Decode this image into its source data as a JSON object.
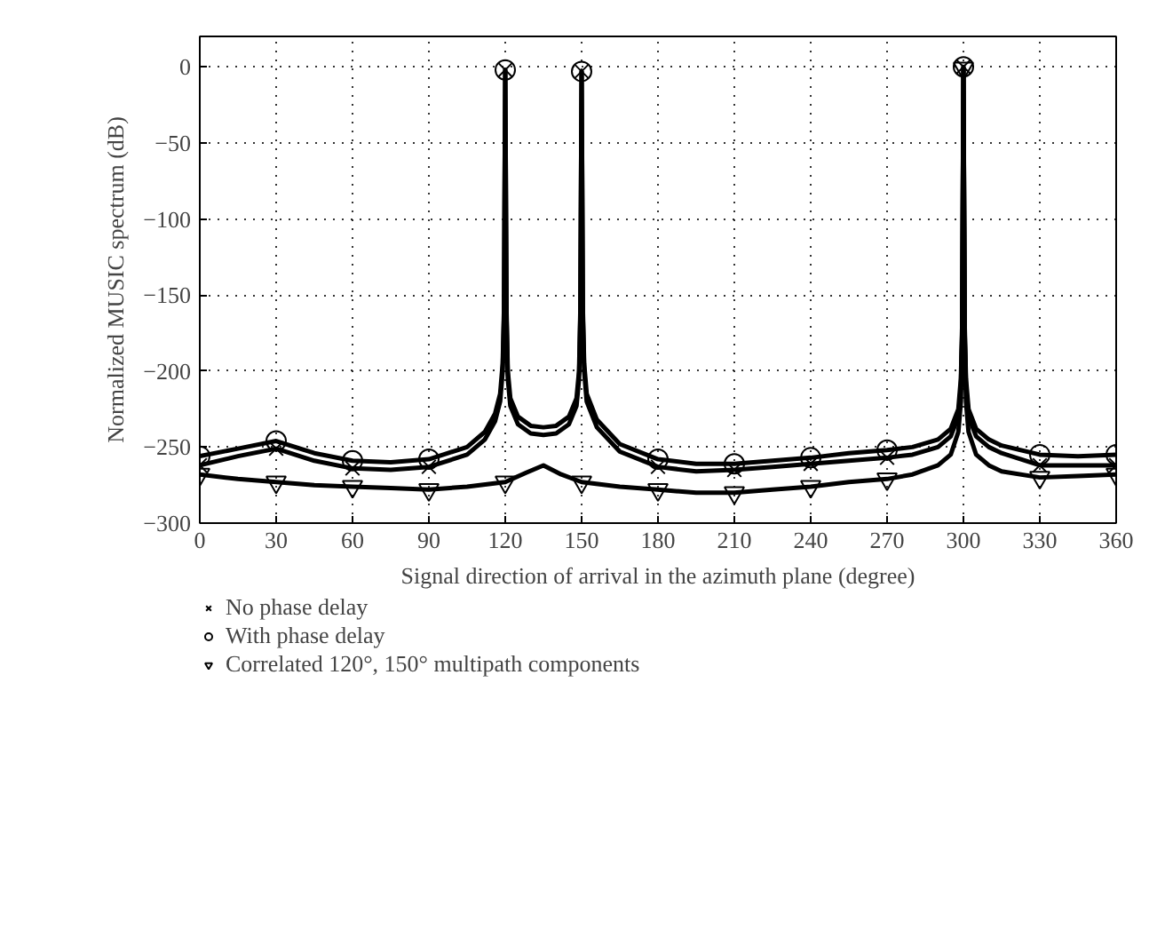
{
  "chart_data": {
    "type": "line",
    "xlabel": "Signal direction of arrival in the azimuth plane (degree)",
    "ylabel": "Normalized MUSIC spectrum (dB)",
    "xlim": [
      0,
      360
    ],
    "ylim": [
      -300,
      20
    ],
    "xticks": [
      0,
      30,
      60,
      90,
      120,
      150,
      180,
      210,
      240,
      270,
      300,
      330,
      360
    ],
    "yticks": [
      -300,
      -250,
      -200,
      -150,
      -100,
      -50,
      0
    ],
    "grid": true,
    "legend": "bottom",
    "line_style": "solid",
    "series": [
      {
        "color": "#000000",
        "x": [
          0,
          15,
          30,
          45,
          60,
          75,
          90,
          105,
          112,
          116,
          118,
          119,
          119.5,
          120,
          120.5,
          121,
          122,
          125,
          130,
          135,
          140,
          145,
          148,
          149,
          149.5,
          150,
          150.5,
          151,
          152,
          156,
          165,
          180,
          195,
          210,
          225,
          240,
          255,
          270,
          280,
          290,
          295,
          298,
          299,
          299.5,
          300,
          300.5,
          301,
          302,
          305,
          310,
          315,
          330,
          345,
          360
        ],
        "values": [
          -262,
          -256,
          -251,
          -259,
          -264,
          -265,
          -263,
          -255,
          -245,
          -233,
          -220,
          -200,
          -165,
          -2,
          -165,
          -205,
          -223,
          -235,
          -241,
          -242,
          -241,
          -235,
          -223,
          -205,
          -165,
          -3,
          -165,
          -200,
          -220,
          -237,
          -253,
          -263,
          -266,
          -265,
          -263,
          -261,
          -259,
          -257,
          -255,
          -250,
          -243,
          -230,
          -210,
          -175,
          0,
          -175,
          -210,
          -230,
          -243,
          -250,
          -254,
          -262,
          -262,
          -262
        ]
      },
      {
        "color": "#000000",
        "x": [
          0,
          15,
          30,
          45,
          60,
          75,
          90,
          105,
          112,
          116,
          118,
          119,
          119.5,
          120,
          120.5,
          121,
          122,
          125,
          130,
          135,
          140,
          145,
          148,
          149,
          149.5,
          150,
          150.5,
          151,
          152,
          156,
          165,
          180,
          195,
          210,
          225,
          240,
          255,
          270,
          280,
          290,
          295,
          298,
          299,
          299.5,
          300,
          300.5,
          301,
          302,
          305,
          310,
          315,
          330,
          345,
          360
        ],
        "values": [
          -256,
          -251,
          -246,
          -254,
          -259,
          -260,
          -258,
          -250,
          -240,
          -228,
          -215,
          -195,
          -160,
          -2,
          -160,
          -200,
          -218,
          -230,
          -236,
          -237,
          -236,
          -230,
          -218,
          -200,
          -160,
          -3,
          -160,
          -195,
          -215,
          -232,
          -248,
          -258,
          -261,
          -261,
          -259,
          -257,
          -254,
          -252,
          -250,
          -245,
          -238,
          -225,
          -205,
          -170,
          0,
          -170,
          -205,
          -225,
          -238,
          -245,
          -249,
          -255,
          -256,
          -255
        ]
      },
      {
        "color": "#000000",
        "x": [
          0,
          15,
          30,
          45,
          60,
          75,
          90,
          105,
          120,
          128,
          135,
          142,
          150,
          165,
          180,
          195,
          210,
          225,
          240,
          255,
          270,
          280,
          290,
          295,
          298,
          299,
          299.5,
          300,
          300.5,
          301,
          302,
          305,
          310,
          315,
          330,
          345,
          360
        ],
        "values": [
          -268,
          -271,
          -273,
          -275,
          -276,
          -277,
          -278,
          -276,
          -273,
          -267,
          -262,
          -268,
          -273,
          -276,
          -278,
          -280,
          -280,
          -278,
          -276,
          -273,
          -271,
          -268,
          -262,
          -255,
          -240,
          -220,
          -180,
          -1,
          -180,
          -220,
          -240,
          -255,
          -262,
          -266,
          -270,
          -269,
          -268
        ]
      },
      {
        "type": "scatter",
        "name": "No phase delay",
        "color": "#000000",
        "marker": "cross",
        "x": [
          0,
          30,
          60,
          90,
          120,
          150,
          180,
          210,
          240,
          270,
          300,
          330,
          360
        ],
        "values": [
          -262,
          -251,
          -264,
          -263,
          -2,
          -3,
          -263,
          -265,
          -261,
          -257,
          0,
          -262,
          -262
        ]
      },
      {
        "type": "scatter",
        "name": "With phase delay",
        "color": "#000000",
        "marker": "circle",
        "x": [
          0,
          30,
          60,
          90,
          120,
          150,
          180,
          210,
          240,
          270,
          300,
          330,
          360
        ],
        "values": [
          -256,
          -246,
          -259,
          -258,
          -2,
          -3,
          -258,
          -261,
          -257,
          -252,
          0,
          -255,
          -255
        ]
      },
      {
        "type": "scatter",
        "name": "Correlated 120°, 150° multipath components",
        "color": "#000000",
        "marker": "triangle",
        "x": [
          0,
          30,
          60,
          90,
          120,
          150,
          180,
          210,
          240,
          270,
          300,
          330,
          360
        ],
        "values": [
          -268,
          -273,
          -276,
          -278,
          -273,
          -273,
          -278,
          -280,
          -276,
          -271,
          -1,
          -270,
          -268
        ]
      }
    ]
  }
}
